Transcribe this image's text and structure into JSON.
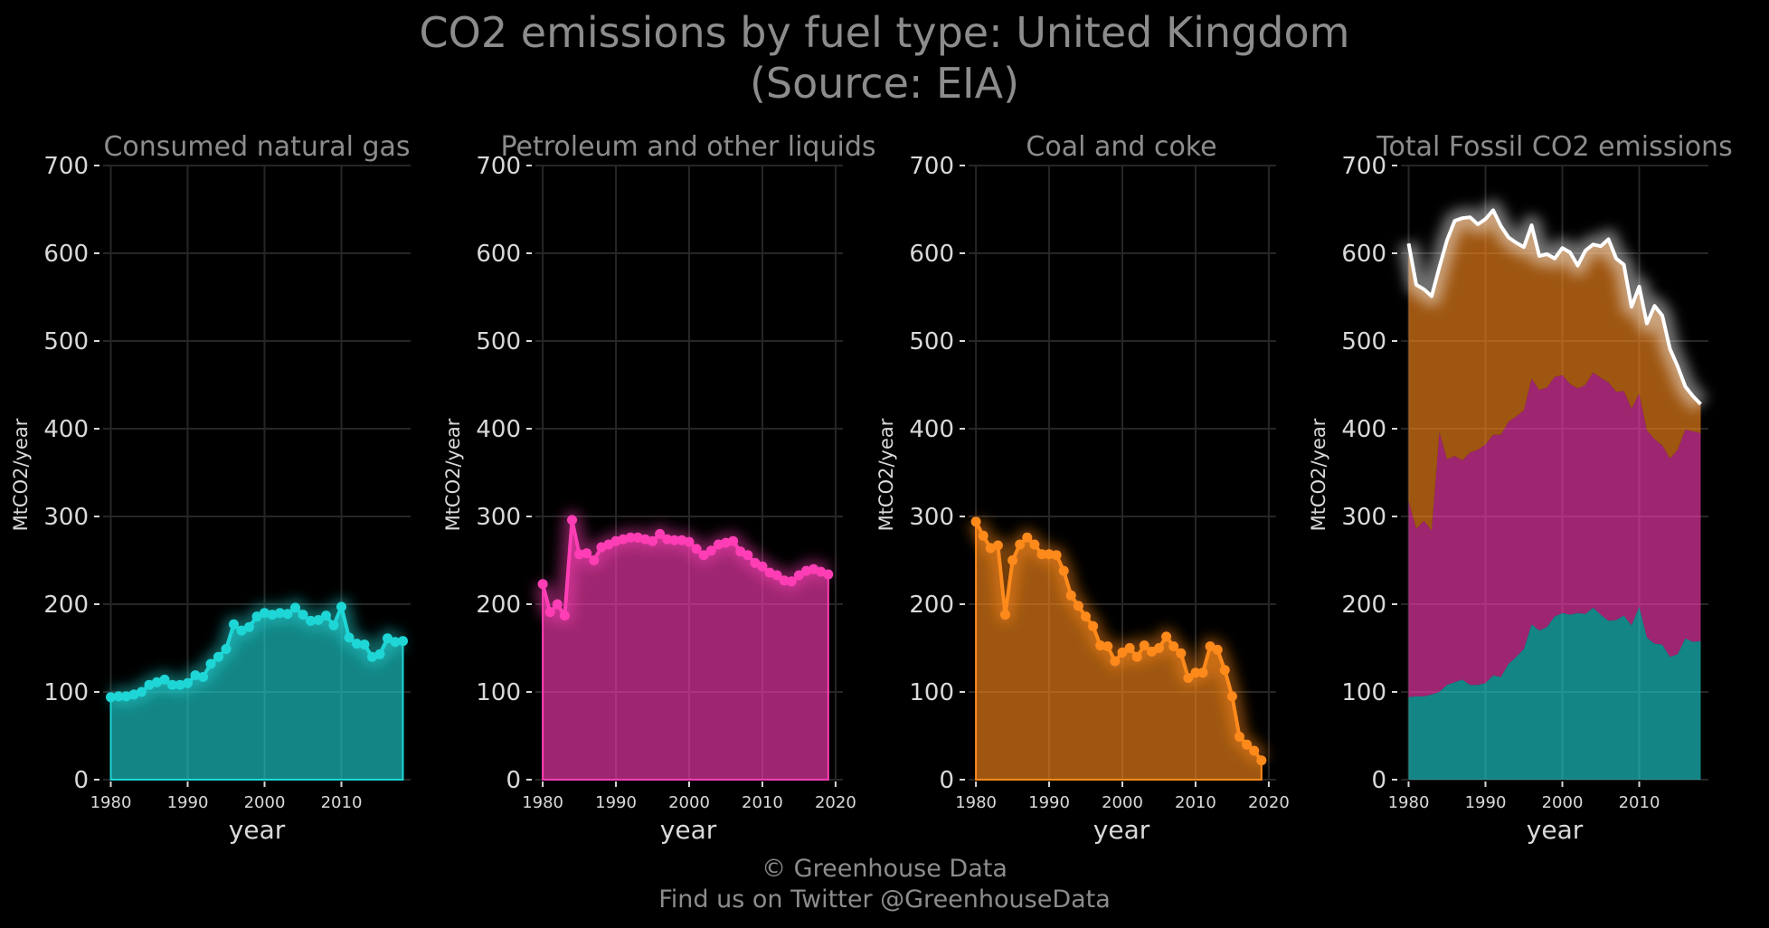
{
  "title": {
    "line1": "CO2 emissions by fuel type: United Kingdom",
    "line2": "(Source: EIA)"
  },
  "footer": {
    "line1": "© Greenhouse Data",
    "line2": "Find us on Twitter @GreenhouseData"
  },
  "colors": {
    "gas": "#1fd6d6",
    "petroleum": "#ff3eb5",
    "coal": "#ff8a1c",
    "total": "#ffffff",
    "grid": "#262626",
    "text": "#8c8c8c",
    "tick_text": "#d9d9d9"
  },
  "chart_data": [
    {
      "type": "area",
      "title": "Consumed natural gas",
      "xlabel": "year",
      "ylabel": "MtCO2/year",
      "xlim": [
        1979,
        2019
      ],
      "ylim": [
        0,
        700
      ],
      "xticks": [
        1980,
        1990,
        2000,
        2010
      ],
      "yticks": [
        0,
        100,
        200,
        300,
        400,
        500,
        600,
        700
      ],
      "grid": true,
      "series": [
        {
          "x": [
            1980,
            1981,
            1982,
            1983,
            1984,
            1985,
            1986,
            1987,
            1988,
            1989,
            1990,
            1991,
            1992,
            1993,
            1994,
            1995,
            1996,
            1997,
            1998,
            1999,
            2000,
            2001,
            2002,
            2003,
            2004,
            2005,
            2006,
            2007,
            2008,
            2009,
            2010,
            2011,
            2012,
            2013,
            2014,
            2015,
            2016,
            2017,
            2018
          ],
          "values": [
            94,
            95,
            95,
            97,
            100,
            108,
            111,
            114,
            108,
            108,
            110,
            119,
            117,
            132,
            140,
            149,
            177,
            170,
            174,
            186,
            190,
            188,
            190,
            189,
            196,
            188,
            181,
            182,
            187,
            176,
            197,
            162,
            155,
            154,
            140,
            143,
            161,
            157,
            158
          ]
        }
      ]
    },
    {
      "type": "area",
      "title": "Petroleum and other liquids",
      "xlabel": "year",
      "ylabel": "MtCO2/year",
      "xlim": [
        1979,
        2021
      ],
      "ylim": [
        0,
        700
      ],
      "xticks": [
        1980,
        1990,
        2000,
        2010,
        2020
      ],
      "yticks": [
        0,
        100,
        200,
        300,
        400,
        500,
        600,
        700
      ],
      "grid": true,
      "series": [
        {
          "x": [
            1980,
            1981,
            1982,
            1983,
            1984,
            1985,
            1986,
            1987,
            1988,
            1989,
            1990,
            1991,
            1992,
            1993,
            1994,
            1995,
            1996,
            1997,
            1998,
            1999,
            2000,
            2001,
            2002,
            2003,
            2004,
            2005,
            2006,
            2007,
            2008,
            2009,
            2010,
            2011,
            2012,
            2013,
            2014,
            2015,
            2016,
            2017,
            2018,
            2019
          ],
          "values": [
            223,
            191,
            200,
            187,
            296,
            257,
            258,
            250,
            265,
            268,
            272,
            274,
            276,
            276,
            274,
            272,
            280,
            274,
            273,
            273,
            271,
            263,
            256,
            261,
            268,
            270,
            272,
            260,
            256,
            247,
            243,
            236,
            233,
            227,
            226,
            233,
            238,
            240,
            237,
            234
          ]
        }
      ]
    },
    {
      "type": "area",
      "title": "Coal and coke",
      "xlabel": "year",
      "ylabel": "MtCO2/year",
      "xlim": [
        1979,
        2021
      ],
      "ylim": [
        0,
        700
      ],
      "xticks": [
        1980,
        1990,
        2000,
        2010,
        2020
      ],
      "yticks": [
        0,
        100,
        200,
        300,
        400,
        500,
        600,
        700
      ],
      "grid": true,
      "series": [
        {
          "x": [
            1980,
            1981,
            1982,
            1983,
            1984,
            1985,
            1986,
            1987,
            1988,
            1989,
            1990,
            1991,
            1992,
            1993,
            1994,
            1995,
            1996,
            1997,
            1998,
            1999,
            2000,
            2001,
            2002,
            2003,
            2004,
            2005,
            2006,
            2007,
            2008,
            2009,
            2010,
            2011,
            2012,
            2013,
            2014,
            2015,
            2016,
            2017,
            2018,
            2019
          ],
          "values": [
            294,
            278,
            264,
            267,
            188,
            250,
            268,
            276,
            268,
            257,
            257,
            256,
            238,
            210,
            198,
            186,
            175,
            153,
            152,
            135,
            145,
            150,
            140,
            153,
            146,
            150,
            163,
            152,
            144,
            116,
            122,
            122,
            152,
            148,
            125,
            95,
            49,
            40,
            33,
            22
          ]
        }
      ]
    },
    {
      "type": "area",
      "stacked": true,
      "title": "Total Fossil CO2 emissions",
      "xlabel": "year",
      "ylabel": "MtCO2/year",
      "xlim": [
        1979,
        2019
      ],
      "ylim": [
        0,
        700
      ],
      "xticks": [
        1980,
        1990,
        2000,
        2010
      ],
      "yticks": [
        0,
        100,
        200,
        300,
        400,
        500,
        600,
        700
      ],
      "grid": true,
      "x": [
        1980,
        1981,
        1982,
        1983,
        1984,
        1985,
        1986,
        1987,
        1988,
        1989,
        1990,
        1991,
        1992,
        1993,
        1994,
        1995,
        1996,
        1997,
        1998,
        1999,
        2000,
        2001,
        2002,
        2003,
        2004,
        2005,
        2006,
        2007,
        2008,
        2009,
        2010,
        2011,
        2012,
        2013,
        2014,
        2015,
        2016,
        2017,
        2018
      ],
      "stack_colors": [
        "gas",
        "petroleum",
        "coal"
      ],
      "total": [
        611,
        564,
        559,
        551,
        584,
        615,
        637,
        640,
        641,
        633,
        639,
        649,
        631,
        618,
        612,
        607,
        632,
        597,
        599,
        594,
        606,
        601,
        586,
        603,
        610,
        608,
        616,
        594,
        587,
        539,
        562,
        520,
        540,
        529,
        491,
        471,
        448,
        437,
        428
      ]
    }
  ]
}
